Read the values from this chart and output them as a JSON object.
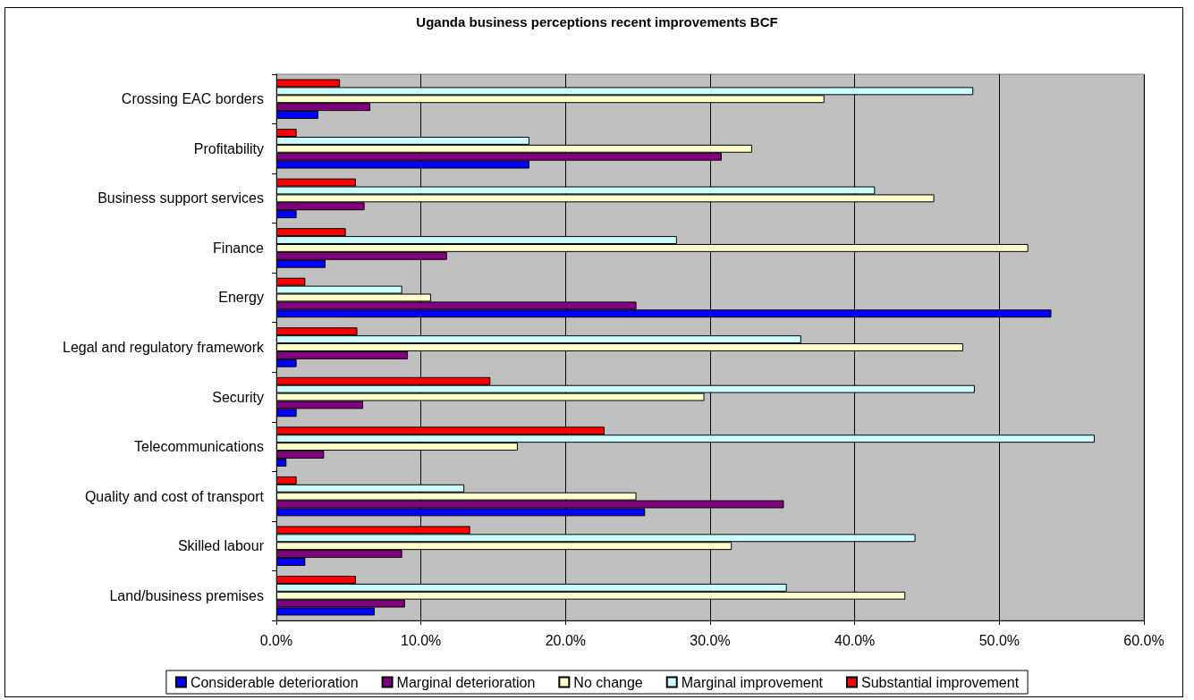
{
  "chart_data": {
    "type": "bar",
    "orientation": "horizontal",
    "title": "Uganda business perceptions recent improvements BCF",
    "categories": [
      "Crossing EAC borders",
      "Profitability",
      "Business support services",
      "Finance",
      "Energy",
      "Legal and regulatory framework",
      "Security",
      "Telecommunications",
      "Quality and cost of transport",
      "Skilled labour",
      "Land/business premises"
    ],
    "series": [
      {
        "name": "Considerable deterioration",
        "color": "#0000ff",
        "values": [
          2.9,
          17.5,
          1.4,
          3.4,
          53.6,
          1.4,
          1.4,
          0.7,
          25.5,
          2.0,
          6.8
        ]
      },
      {
        "name": "Marginal deterioration",
        "color": "#800080",
        "values": [
          6.5,
          30.8,
          6.1,
          11.8,
          24.9,
          9.1,
          6.0,
          3.3,
          35.1,
          8.7,
          8.9
        ]
      },
      {
        "name": "No change",
        "color": "#ffffcc",
        "values": [
          37.9,
          32.9,
          45.5,
          52.0,
          10.7,
          47.5,
          29.6,
          16.7,
          24.9,
          31.5,
          43.5
        ]
      },
      {
        "name": "Marginal improvement",
        "color": "#ccffff",
        "values": [
          48.2,
          17.5,
          41.4,
          27.7,
          8.7,
          36.3,
          48.3,
          56.6,
          13.0,
          44.2,
          35.3
        ]
      },
      {
        "name": "Substantial improvement",
        "color": "#ff0000",
        "values": [
          4.4,
          1.4,
          5.5,
          4.8,
          2.0,
          5.6,
          14.8,
          22.7,
          1.4,
          13.4,
          5.5
        ]
      }
    ],
    "xlim": [
      0,
      60
    ],
    "xticks": [
      {
        "value": 0,
        "label": "0.0%"
      },
      {
        "value": 10,
        "label": "10.0%"
      },
      {
        "value": 20,
        "label": "20.0%"
      },
      {
        "value": 30,
        "label": "30.0%"
      },
      {
        "value": 40,
        "label": "40.0%"
      },
      {
        "value": 50,
        "label": "50.0%"
      },
      {
        "value": 60,
        "label": "60.0%"
      }
    ],
    "grid": "x",
    "legend": "bottom"
  }
}
